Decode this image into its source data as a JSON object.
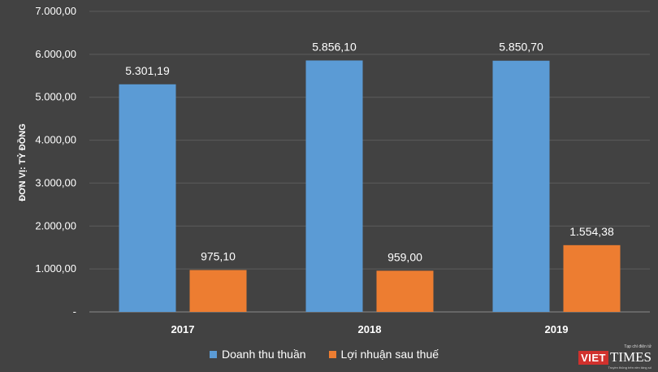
{
  "chart_data": {
    "type": "bar",
    "categories": [
      "2017",
      "2018",
      "2019"
    ],
    "series": [
      {
        "name": "Doanh thu thuần",
        "values": [
          5301.19,
          5856.1,
          5850.7
        ],
        "labels": [
          "5.301,19",
          "5.856,10",
          "5.850,70"
        ],
        "color": "#5b9bd5"
      },
      {
        "name": "Lợi nhuận sau thuế",
        "values": [
          975.1,
          959.0,
          1554.38
        ],
        "labels": [
          "975,10",
          "959,00",
          "1.554,38"
        ],
        "color": "#ed7d31"
      }
    ],
    "ylabel": "ĐƠN VỊ: TỶ ĐỒNG",
    "ylim": [
      0,
      7000
    ],
    "yticks": [
      0,
      1000,
      2000,
      3000,
      4000,
      5000,
      6000,
      7000
    ],
    "ytick_labels": [
      "-",
      "1.000,00",
      "2.000,00",
      "3.000,00",
      "4.000,00",
      "5.000,00",
      "6.000,00",
      "7.000,00"
    ],
    "grid": true,
    "legend_position": "bottom"
  },
  "brand": {
    "tagline": "Tạp chí điện tử",
    "viet": "VIET",
    "times": "TIMES",
    "subline": "Truyền thông trên nền tảng số"
  }
}
